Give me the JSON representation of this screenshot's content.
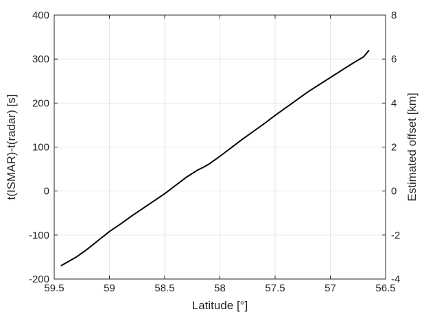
{
  "chart_data": {
    "type": "line",
    "title": "",
    "xlabel": "Latitude [°]",
    "ylabel": "t(ISMAR)-t(radar) [s]",
    "y2label": "Estimated offset [km]",
    "xlim": [
      59.5,
      56.5
    ],
    "x_reversed": true,
    "ylim": [
      -200,
      400
    ],
    "y2lim": [
      -4,
      8
    ],
    "grid": true,
    "legend": "none",
    "x_ticks": [
      59.5,
      59,
      58.5,
      58,
      57.5,
      57,
      56.5
    ],
    "x_tick_labels": [
      "59.5",
      "59",
      "58.5",
      "58",
      "57.5",
      "57",
      "56.5"
    ],
    "y_ticks": [
      -200,
      -100,
      0,
      100,
      200,
      300,
      400
    ],
    "y_tick_labels": [
      "-200",
      "-100",
      "0",
      "100",
      "200",
      "300",
      "400"
    ],
    "y2_ticks": [
      -4,
      -2,
      0,
      2,
      4,
      6,
      8
    ],
    "y2_tick_labels": [
      "-4",
      "-2",
      "0",
      "2",
      "4",
      "6",
      "8"
    ],
    "series": [
      {
        "color": "#000000",
        "x": [
          59.44,
          59.3,
          59.2,
          59.1,
          59.0,
          58.9,
          58.8,
          58.7,
          58.6,
          58.5,
          58.4,
          58.3,
          58.2,
          58.15,
          58.1,
          58.0,
          57.9,
          57.8,
          57.7,
          57.6,
          57.5,
          57.4,
          57.3,
          57.2,
          57.1,
          57.0,
          56.9,
          56.8,
          56.7,
          56.65
        ],
        "y": [
          -170,
          -150,
          -132,
          -112,
          -92,
          -75,
          -57,
          -40,
          -23,
          -6,
          13,
          32,
          48,
          54,
          61,
          79,
          98,
          117,
          135,
          153,
          172,
          190,
          208,
          226,
          242,
          258,
          274,
          290,
          305,
          320
        ]
      }
    ]
  }
}
